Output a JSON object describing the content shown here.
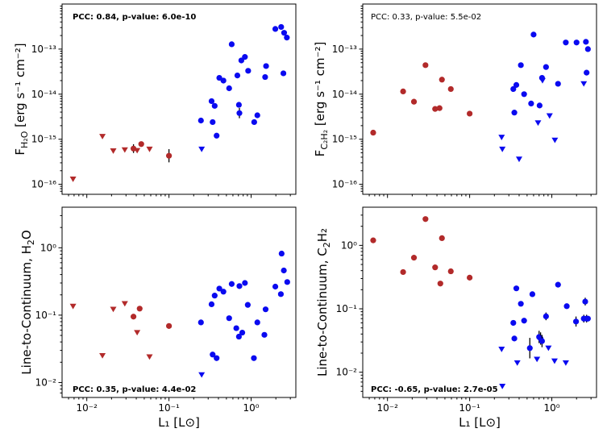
{
  "colors": {
    "red": "#b22a2a",
    "blue": "#0a0af0",
    "axis": "#000000"
  },
  "xlabel": "L₁ [L⊙]",
  "chart_data": [
    {
      "id": "p1",
      "type": "scatter",
      "ylabel_main": "F",
      "ylabel_sub": "H₂O",
      "ylabel_units": " [erg s⁻¹ cm⁻²]",
      "annotation": "PCC: 0.84, p-value: 6.0e-10",
      "annotation_bold": true,
      "annotation_pos": "top-left",
      "xscale": "log",
      "yscale": "log",
      "xlim": [
        0.005,
        3.5
      ],
      "ylim": [
        6e-17,
        1e-12
      ],
      "xticks": [
        0.01,
        0.1,
        1
      ],
      "xtick_labels": [
        "10⁻²",
        "10⁻¹",
        "10⁰"
      ],
      "yticks": [
        1e-16,
        1e-15,
        1e-14,
        1e-13
      ],
      "ytick_labels": [
        "10⁻¹⁶",
        "10⁻¹⁵",
        "10⁻¹⁴",
        "10⁻¹³"
      ],
      "points": [
        {
          "x": 0.0068,
          "y": 1.3e-16,
          "c": "red",
          "m": "tri"
        },
        {
          "x": 0.0155,
          "y": 1.15e-15,
          "c": "red",
          "m": "tri"
        },
        {
          "x": 0.021,
          "y": 5.5e-16,
          "c": "red",
          "m": "tri"
        },
        {
          "x": 0.029,
          "y": 5.8e-16,
          "c": "red",
          "m": "tri"
        },
        {
          "x": 0.037,
          "y": 6.2e-16,
          "c": "red",
          "m": "dot",
          "err": 1.25
        },
        {
          "x": 0.041,
          "y": 5.6e-16,
          "c": "red",
          "m": "tri"
        },
        {
          "x": 0.046,
          "y": 7.8e-16,
          "c": "red",
          "m": "dot"
        },
        {
          "x": 0.058,
          "y": 6e-16,
          "c": "red",
          "m": "tri"
        },
        {
          "x": 0.1,
          "y": 4.3e-16,
          "c": "red",
          "m": "dot",
          "err": 1.4
        },
        {
          "x": 0.245,
          "y": 2.6e-15,
          "c": "blue",
          "m": "dot"
        },
        {
          "x": 0.25,
          "y": 6e-16,
          "c": "blue",
          "m": "tri"
        },
        {
          "x": 0.33,
          "y": 7e-15,
          "c": "blue",
          "m": "dot"
        },
        {
          "x": 0.34,
          "y": 2.4e-15,
          "c": "blue",
          "m": "dot"
        },
        {
          "x": 0.36,
          "y": 5.5e-15,
          "c": "blue",
          "m": "dot"
        },
        {
          "x": 0.38,
          "y": 1.2e-15,
          "c": "blue",
          "m": "dot"
        },
        {
          "x": 0.41,
          "y": 2.3e-14,
          "c": "blue",
          "m": "dot"
        },
        {
          "x": 0.46,
          "y": 2e-14,
          "c": "blue",
          "m": "dot"
        },
        {
          "x": 0.54,
          "y": 1.35e-14,
          "c": "blue",
          "m": "dot"
        },
        {
          "x": 0.58,
          "y": 1.28e-13,
          "c": "blue",
          "m": "dot"
        },
        {
          "x": 0.68,
          "y": 2.6e-14,
          "c": "blue",
          "m": "dot"
        },
        {
          "x": 0.71,
          "y": 5.8e-15,
          "c": "blue",
          "m": "dot"
        },
        {
          "x": 0.72,
          "y": 3.8e-15,
          "c": "blue",
          "m": "dot",
          "err": 1.3
        },
        {
          "x": 0.76,
          "y": 5.6e-14,
          "c": "blue",
          "m": "dot"
        },
        {
          "x": 0.84,
          "y": 6.7e-14,
          "c": "blue",
          "m": "dot"
        },
        {
          "x": 0.92,
          "y": 3.3e-14,
          "c": "blue",
          "m": "dot"
        },
        {
          "x": 1.09,
          "y": 2.4e-15,
          "c": "blue",
          "m": "dot"
        },
        {
          "x": 1.19,
          "y": 3.4e-15,
          "c": "blue",
          "m": "dot"
        },
        {
          "x": 1.48,
          "y": 2.4e-14,
          "c": "blue",
          "m": "dot"
        },
        {
          "x": 1.52,
          "y": 4.2e-14,
          "c": "blue",
          "m": "dot"
        },
        {
          "x": 1.97,
          "y": 2.8e-13,
          "c": "blue",
          "m": "dot"
        },
        {
          "x": 2.32,
          "y": 3.1e-13,
          "c": "blue",
          "m": "dot"
        },
        {
          "x": 2.47,
          "y": 2.9e-14,
          "c": "blue",
          "m": "dot"
        },
        {
          "x": 2.52,
          "y": 2.3e-13,
          "c": "blue",
          "m": "dot"
        },
        {
          "x": 2.72,
          "y": 1.8e-13,
          "c": "blue",
          "m": "dot"
        }
      ]
    },
    {
      "id": "p2",
      "type": "scatter",
      "ylabel_main": "F",
      "ylabel_sub": "C₂H₂",
      "ylabel_units": " [erg s⁻¹ cm⁻²]",
      "annotation": "PCC: 0.33, p-value: 5.5e-02",
      "annotation_bold": false,
      "annotation_pos": "top-left",
      "xscale": "log",
      "yscale": "log",
      "xlim": [
        0.005,
        3.5
      ],
      "ylim": [
        6e-17,
        1e-12
      ],
      "xticks": [
        0.01,
        0.1,
        1
      ],
      "xtick_labels": [
        "10⁻²",
        "10⁻¹",
        "10⁰"
      ],
      "yticks": [
        1e-16,
        1e-15,
        1e-14,
        1e-13
      ],
      "ytick_labels": [
        "10⁻¹⁶",
        "10⁻¹⁵",
        "10⁻¹⁴",
        "10⁻¹³"
      ],
      "points": [
        {
          "x": 0.0067,
          "y": 1.4e-15,
          "c": "red",
          "m": "dot"
        },
        {
          "x": 0.0155,
          "y": 1.15e-14,
          "c": "red",
          "m": "dot"
        },
        {
          "x": 0.021,
          "y": 6.8e-15,
          "c": "red",
          "m": "dot"
        },
        {
          "x": 0.029,
          "y": 4.4e-14,
          "c": "red",
          "m": "dot"
        },
        {
          "x": 0.038,
          "y": 4.7e-15,
          "c": "red",
          "m": "dot"
        },
        {
          "x": 0.043,
          "y": 4.9e-15,
          "c": "red",
          "m": "dot"
        },
        {
          "x": 0.046,
          "y": 2.1e-14,
          "c": "red",
          "m": "dot"
        },
        {
          "x": 0.059,
          "y": 1.3e-14,
          "c": "red",
          "m": "dot"
        },
        {
          "x": 0.1,
          "y": 3.7e-15,
          "c": "red",
          "m": "dot"
        },
        {
          "x": 0.245,
          "y": 1.1e-15,
          "c": "blue",
          "m": "tri"
        },
        {
          "x": 0.25,
          "y": 6e-16,
          "c": "blue",
          "m": "tri"
        },
        {
          "x": 0.34,
          "y": 1.3e-14,
          "c": "blue",
          "m": "dot"
        },
        {
          "x": 0.35,
          "y": 3.9e-15,
          "c": "blue",
          "m": "dot"
        },
        {
          "x": 0.37,
          "y": 1.6e-14,
          "c": "blue",
          "m": "dot"
        },
        {
          "x": 0.4,
          "y": 3.6e-16,
          "c": "blue",
          "m": "tri"
        },
        {
          "x": 0.42,
          "y": 4.4e-14,
          "c": "blue",
          "m": "dot"
        },
        {
          "x": 0.46,
          "y": 1e-14,
          "c": "blue",
          "m": "dot"
        },
        {
          "x": 0.56,
          "y": 6.2e-15,
          "c": "blue",
          "m": "dot"
        },
        {
          "x": 0.6,
          "y": 2.1e-13,
          "c": "blue",
          "m": "dot"
        },
        {
          "x": 0.68,
          "y": 2.3e-15,
          "c": "blue",
          "m": "tri"
        },
        {
          "x": 0.71,
          "y": 5.6e-15,
          "c": "blue",
          "m": "dot"
        },
        {
          "x": 0.76,
          "y": 2.3e-14,
          "c": "blue",
          "m": "dot"
        },
        {
          "x": 0.77,
          "y": 2e-14,
          "c": "blue",
          "m": "tri"
        },
        {
          "x": 0.85,
          "y": 4e-14,
          "c": "blue",
          "m": "dot"
        },
        {
          "x": 0.94,
          "y": 3.3e-15,
          "c": "blue",
          "m": "tri"
        },
        {
          "x": 1.09,
          "y": 9.5e-16,
          "c": "blue",
          "m": "tri"
        },
        {
          "x": 1.19,
          "y": 1.7e-14,
          "c": "blue",
          "m": "dot"
        },
        {
          "x": 1.48,
          "y": 1.4e-13,
          "c": "blue",
          "m": "dot"
        },
        {
          "x": 2.0,
          "y": 1.4e-13,
          "c": "blue",
          "m": "dot"
        },
        {
          "x": 2.45,
          "y": 1.7e-14,
          "c": "blue",
          "m": "tri"
        },
        {
          "x": 2.6,
          "y": 1.45e-13,
          "c": "blue",
          "m": "dot"
        },
        {
          "x": 2.65,
          "y": 3e-14,
          "c": "blue",
          "m": "dot"
        },
        {
          "x": 2.75,
          "y": 1e-13,
          "c": "blue",
          "m": "dot"
        }
      ]
    },
    {
      "id": "p3",
      "type": "scatter",
      "ylabel_main": "Line-to-Continuum, H",
      "ylabel_sub": "2",
      "ylabel_units": "O",
      "annotation": "PCC: 0.35, p-value: 4.4e-02",
      "annotation_bold": true,
      "annotation_pos": "bottom-left",
      "xscale": "log",
      "yscale": "log",
      "xlim": [
        0.005,
        3.5
      ],
      "ylim": [
        0.006,
        4.0
      ],
      "xticks": [
        0.01,
        0.1,
        1
      ],
      "xtick_labels": [
        "10⁻²",
        "10⁻¹",
        "10⁰"
      ],
      "yticks": [
        0.01,
        0.1,
        1
      ],
      "ytick_labels": [
        "10⁻²",
        "10⁻¹",
        "10⁰"
      ],
      "points": [
        {
          "x": 0.0068,
          "y": 0.135,
          "c": "red",
          "m": "tri"
        },
        {
          "x": 0.0155,
          "y": 0.025,
          "c": "red",
          "m": "tri"
        },
        {
          "x": 0.021,
          "y": 0.122,
          "c": "red",
          "m": "tri"
        },
        {
          "x": 0.029,
          "y": 0.148,
          "c": "red",
          "m": "tri"
        },
        {
          "x": 0.037,
          "y": 0.095,
          "c": "red",
          "m": "dot"
        },
        {
          "x": 0.041,
          "y": 0.055,
          "c": "red",
          "m": "tri"
        },
        {
          "x": 0.044,
          "y": 0.125,
          "c": "red",
          "m": "dot"
        },
        {
          "x": 0.058,
          "y": 0.024,
          "c": "red",
          "m": "tri"
        },
        {
          "x": 0.1,
          "y": 0.069,
          "c": "red",
          "m": "dot"
        },
        {
          "x": 0.245,
          "y": 0.078,
          "c": "blue",
          "m": "dot"
        },
        {
          "x": 0.25,
          "y": 0.013,
          "c": "blue",
          "m": "tri"
        },
        {
          "x": 0.33,
          "y": 0.145,
          "c": "blue",
          "m": "dot"
        },
        {
          "x": 0.34,
          "y": 0.026,
          "c": "blue",
          "m": "dot"
        },
        {
          "x": 0.36,
          "y": 0.195,
          "c": "blue",
          "m": "dot"
        },
        {
          "x": 0.38,
          "y": 0.023,
          "c": "blue",
          "m": "dot"
        },
        {
          "x": 0.41,
          "y": 0.248,
          "c": "blue",
          "m": "dot"
        },
        {
          "x": 0.46,
          "y": 0.223,
          "c": "blue",
          "m": "dot"
        },
        {
          "x": 0.54,
          "y": 0.09,
          "c": "blue",
          "m": "dot"
        },
        {
          "x": 0.58,
          "y": 0.29,
          "c": "blue",
          "m": "dot"
        },
        {
          "x": 0.66,
          "y": 0.064,
          "c": "blue",
          "m": "dot"
        },
        {
          "x": 0.71,
          "y": 0.048,
          "c": "blue",
          "m": "dot"
        },
        {
          "x": 0.72,
          "y": 0.27,
          "c": "blue",
          "m": "dot"
        },
        {
          "x": 0.78,
          "y": 0.055,
          "c": "blue",
          "m": "dot"
        },
        {
          "x": 0.84,
          "y": 0.3,
          "c": "blue",
          "m": "dot"
        },
        {
          "x": 0.91,
          "y": 0.142,
          "c": "blue",
          "m": "dot"
        },
        {
          "x": 1.08,
          "y": 0.023,
          "c": "blue",
          "m": "dot"
        },
        {
          "x": 1.19,
          "y": 0.078,
          "c": "blue",
          "m": "dot"
        },
        {
          "x": 1.45,
          "y": 0.051,
          "c": "blue",
          "m": "dot"
        },
        {
          "x": 1.5,
          "y": 0.122,
          "c": "blue",
          "m": "dot"
        },
        {
          "x": 1.97,
          "y": 0.265,
          "c": "blue",
          "m": "dot"
        },
        {
          "x": 2.3,
          "y": 0.205,
          "c": "blue",
          "m": "dot"
        },
        {
          "x": 2.35,
          "y": 0.82,
          "c": "blue",
          "m": "dot"
        },
        {
          "x": 2.5,
          "y": 0.46,
          "c": "blue",
          "m": "dot"
        },
        {
          "x": 2.75,
          "y": 0.31,
          "c": "blue",
          "m": "dot"
        }
      ]
    },
    {
      "id": "p4",
      "type": "scatter",
      "ylabel_main": "Line-to-Continuum, C",
      "ylabel_sub": "2",
      "ylabel_units": "H₂",
      "annotation": "PCC: -0.65, p-value: 2.7e-05",
      "annotation_bold": true,
      "annotation_pos": "bottom-left",
      "xscale": "log",
      "yscale": "log",
      "xlim": [
        0.005,
        3.5
      ],
      "ylim": [
        0.004,
        4.0
      ],
      "xticks": [
        0.01,
        0.1,
        1
      ],
      "xtick_labels": [
        "10⁻²",
        "10⁻¹",
        "10⁰"
      ],
      "yticks": [
        0.01,
        0.1,
        1
      ],
      "ytick_labels": [
        "10⁻²",
        "10⁻¹",
        "10⁰"
      ],
      "points": [
        {
          "x": 0.0067,
          "y": 1.2,
          "c": "red",
          "m": "dot"
        },
        {
          "x": 0.0155,
          "y": 0.38,
          "c": "red",
          "m": "dot"
        },
        {
          "x": 0.021,
          "y": 0.64,
          "c": "red",
          "m": "dot"
        },
        {
          "x": 0.029,
          "y": 2.6,
          "c": "red",
          "m": "dot"
        },
        {
          "x": 0.038,
          "y": 0.45,
          "c": "red",
          "m": "dot"
        },
        {
          "x": 0.044,
          "y": 0.25,
          "c": "red",
          "m": "dot"
        },
        {
          "x": 0.046,
          "y": 1.3,
          "c": "red",
          "m": "dot"
        },
        {
          "x": 0.059,
          "y": 0.39,
          "c": "red",
          "m": "dot"
        },
        {
          "x": 0.1,
          "y": 0.31,
          "c": "red",
          "m": "dot"
        },
        {
          "x": 0.245,
          "y": 0.023,
          "c": "blue",
          "m": "tri"
        },
        {
          "x": 0.25,
          "y": 0.006,
          "c": "blue",
          "m": "tri"
        },
        {
          "x": 0.34,
          "y": 0.06,
          "c": "blue",
          "m": "dot"
        },
        {
          "x": 0.35,
          "y": 0.034,
          "c": "blue",
          "m": "dot"
        },
        {
          "x": 0.37,
          "y": 0.21,
          "c": "blue",
          "m": "dot"
        },
        {
          "x": 0.38,
          "y": 0.014,
          "c": "blue",
          "m": "tri"
        },
        {
          "x": 0.42,
          "y": 0.12,
          "c": "blue",
          "m": "dot"
        },
        {
          "x": 0.46,
          "y": 0.065,
          "c": "blue",
          "m": "dot"
        },
        {
          "x": 0.54,
          "y": 0.024,
          "c": "blue",
          "m": "dot",
          "err": 1.45
        },
        {
          "x": 0.58,
          "y": 0.17,
          "c": "blue",
          "m": "dot"
        },
        {
          "x": 0.66,
          "y": 0.016,
          "c": "blue",
          "m": "tri"
        },
        {
          "x": 0.7,
          "y": 0.036,
          "c": "blue",
          "m": "dot",
          "err": 1.25
        },
        {
          "x": 0.73,
          "y": 0.034,
          "c": "blue",
          "m": "dot",
          "err": 1.25
        },
        {
          "x": 0.76,
          "y": 0.031,
          "c": "blue",
          "m": "dot",
          "err": 1.25
        },
        {
          "x": 0.85,
          "y": 0.076,
          "c": "blue",
          "m": "dot",
          "err": 1.15
        },
        {
          "x": 0.91,
          "y": 0.024,
          "c": "blue",
          "m": "tri"
        },
        {
          "x": 1.08,
          "y": 0.015,
          "c": "blue",
          "m": "tri"
        },
        {
          "x": 1.19,
          "y": 0.24,
          "c": "blue",
          "m": "dot"
        },
        {
          "x": 1.48,
          "y": 0.014,
          "c": "blue",
          "m": "tri"
        },
        {
          "x": 1.52,
          "y": 0.11,
          "c": "blue",
          "m": "dot"
        },
        {
          "x": 1.97,
          "y": 0.063,
          "c": "blue",
          "m": "dot",
          "err": 1.2
        },
        {
          "x": 2.45,
          "y": 0.07,
          "c": "blue",
          "m": "dot",
          "err": 1.15
        },
        {
          "x": 2.55,
          "y": 0.13,
          "c": "blue",
          "m": "dot",
          "err": 1.15
        },
        {
          "x": 2.65,
          "y": 0.07,
          "c": "blue",
          "m": "dot",
          "err": 1.15
        },
        {
          "x": 2.75,
          "y": 0.07,
          "c": "blue",
          "m": "dot"
        }
      ]
    }
  ]
}
